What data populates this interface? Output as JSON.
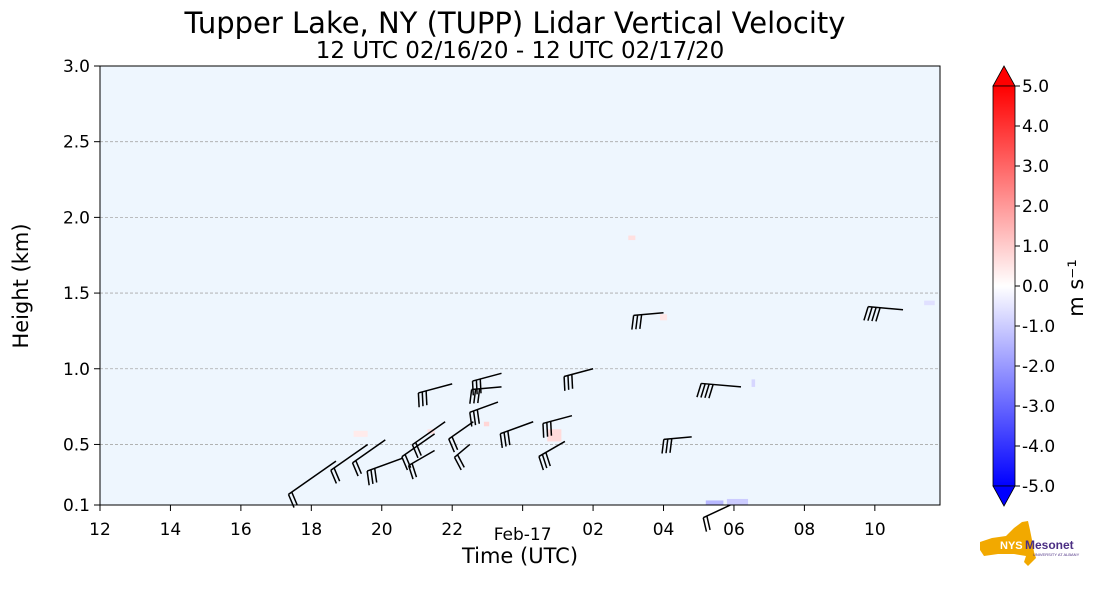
{
  "chart_data": {
    "type": "heatmap",
    "title": "Tupper Lake, NY (TUPP) Lidar Vertical Velocity",
    "subtitle": "12 UTC 02/16/20 - 12 UTC 02/17/20",
    "xlabel": "Time (UTC)",
    "ylabel": "Height (km)",
    "x_unit": "hours since 12 UTC 02/16/20",
    "xlim": [
      0,
      23.85
    ],
    "ylim": [
      0.1,
      3.0
    ],
    "x_ticks": [
      {
        "x": 0,
        "label": "12"
      },
      {
        "x": 2,
        "label": "14"
      },
      {
        "x": 4,
        "label": "16"
      },
      {
        "x": 6,
        "label": "18"
      },
      {
        "x": 8,
        "label": "20"
      },
      {
        "x": 10,
        "label": "22"
      },
      {
        "x": 12,
        "label": "Feb-17"
      },
      {
        "x": 14,
        "label": "02"
      },
      {
        "x": 16,
        "label": "04"
      },
      {
        "x": 18,
        "label": "06"
      },
      {
        "x": 20,
        "label": "08"
      },
      {
        "x": 22,
        "label": "10"
      }
    ],
    "y_ticks": [
      {
        "y": 0.1,
        "label": "0.1"
      },
      {
        "y": 0.5,
        "label": "0.5"
      },
      {
        "y": 1.0,
        "label": "1.0"
      },
      {
        "y": 1.5,
        "label": "1.5"
      },
      {
        "y": 2.0,
        "label": "2.0"
      },
      {
        "y": 2.5,
        "label": "2.5"
      },
      {
        "y": 3.0,
        "label": "3.0"
      }
    ],
    "grid": "horizontal dashed",
    "background_value": 0.0,
    "background_color": "#eef6fe",
    "colorbar": {
      "label": "m s⁻¹",
      "min": -5.0,
      "max": 5.0,
      "ticks": [
        "5.0",
        "4.0",
        "3.0",
        "2.0",
        "1.0",
        "0.0",
        "-1.0",
        "-2.0",
        "-3.0",
        "-4.0",
        "-5.0"
      ],
      "neg_color": "#0000ff",
      "mid_color": "#ffffff",
      "pos_color": "#ff0000"
    },
    "velocity_patches": [
      {
        "x": 7.2,
        "y": 0.55,
        "w": 0.4,
        "h": 0.04,
        "v": 0.4
      },
      {
        "x": 9.3,
        "y": 0.57,
        "w": 0.2,
        "h": 0.03,
        "v": 0.6
      },
      {
        "x": 10.9,
        "y": 0.62,
        "w": 0.15,
        "h": 0.03,
        "v": 0.8
      },
      {
        "x": 12.7,
        "y": 0.52,
        "w": 0.4,
        "h": 0.08,
        "v": 0.7
      },
      {
        "x": 15.0,
        "y": 1.85,
        "w": 0.2,
        "h": 0.03,
        "v": 0.6
      },
      {
        "x": 15.9,
        "y": 1.32,
        "w": 0.2,
        "h": 0.04,
        "v": 0.5
      },
      {
        "x": 17.2,
        "y": 0.1,
        "w": 0.5,
        "h": 0.03,
        "v": -1.4
      },
      {
        "x": 17.8,
        "y": 0.1,
        "w": 0.6,
        "h": 0.04,
        "v": -1.0
      },
      {
        "x": 18.5,
        "y": 0.88,
        "w": 0.1,
        "h": 0.05,
        "v": -0.8
      },
      {
        "x": 23.4,
        "y": 1.42,
        "w": 0.3,
        "h": 0.03,
        "v": -0.6
      }
    ],
    "wind_barbs": [
      {
        "x": 6.7,
        "y": 0.39,
        "dir": 235,
        "len": 58,
        "barbs": 2
      },
      {
        "x": 7.6,
        "y": 0.5,
        "dir": 235,
        "len": 45,
        "barbs": 2
      },
      {
        "x": 8.1,
        "y": 0.53,
        "dir": 235,
        "len": 40,
        "barbs": 2
      },
      {
        "x": 8.6,
        "y": 0.41,
        "dir": 250,
        "len": 38,
        "barbs": 3
      },
      {
        "x": 9.5,
        "y": 0.57,
        "dir": 235,
        "len": 40,
        "barbs": 2
      },
      {
        "x": 9.5,
        "y": 0.46,
        "dir": 240,
        "len": 30,
        "barbs": 2
      },
      {
        "x": 9.8,
        "y": 0.65,
        "dir": 235,
        "len": 40,
        "barbs": 2
      },
      {
        "x": 10.5,
        "y": 0.5,
        "dir": 230,
        "len": 20,
        "barbs": 2
      },
      {
        "x": 10.6,
        "y": 0.65,
        "dir": 235,
        "len": 30,
        "barbs": 2
      },
      {
        "x": 10.0,
        "y": 0.9,
        "dir": 255,
        "len": 35,
        "barbs": 3
      },
      {
        "x": 11.4,
        "y": 0.97,
        "dir": 255,
        "len": 30,
        "barbs": 3
      },
      {
        "x": 11.3,
        "y": 0.78,
        "dir": 250,
        "len": 30,
        "barbs": 3
      },
      {
        "x": 11.4,
        "y": 0.88,
        "dir": 265,
        "len": 30,
        "barbs": 3
      },
      {
        "x": 12.3,
        "y": 0.65,
        "dir": 250,
        "len": 35,
        "barbs": 3
      },
      {
        "x": 13.4,
        "y": 0.69,
        "dir": 255,
        "len": 30,
        "barbs": 3
      },
      {
        "x": 14.0,
        "y": 1.0,
        "dir": 255,
        "len": 30,
        "barbs": 3
      },
      {
        "x": 13.2,
        "y": 0.52,
        "dir": 240,
        "len": 30,
        "barbs": 3
      },
      {
        "x": 16.0,
        "y": 1.37,
        "dir": 265,
        "len": 30,
        "barbs": 3
      },
      {
        "x": 16.8,
        "y": 0.55,
        "dir": 265,
        "len": 28,
        "barbs": 3
      },
      {
        "x": 17.9,
        "y": 0.1,
        "dir": 245,
        "len": 30,
        "barbs": 2
      },
      {
        "x": 18.2,
        "y": 0.88,
        "dir": 275,
        "len": 40,
        "barbs": 4
      },
      {
        "x": 22.8,
        "y": 1.39,
        "dir": 275,
        "len": 35,
        "barbs": 4
      }
    ]
  },
  "logo": {
    "text_nys": "NYS",
    "text_mesonet": "Mesonet",
    "text_sub": "UNIVERSITY AT ALBANY",
    "state_color": "#f2a900",
    "text_color": "#4b2e83"
  }
}
